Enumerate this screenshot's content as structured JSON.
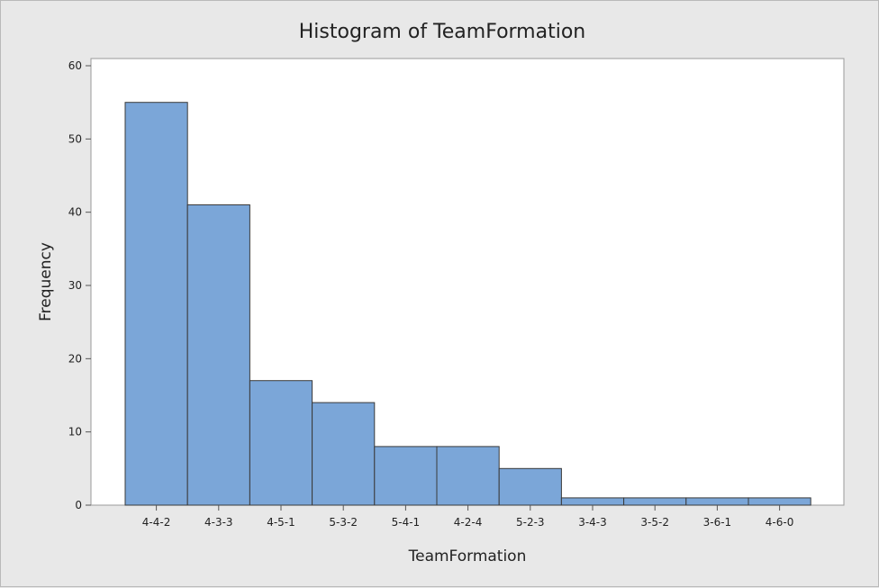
{
  "chart_data": {
    "type": "bar",
    "title": "Histogram of TeamFormation",
    "xlabel": "TeamFormation",
    "ylabel": "Frequency",
    "categories": [
      "4-4-2",
      "4-3-3",
      "4-5-1",
      "5-3-2",
      "5-4-1",
      "4-2-4",
      "5-2-3",
      "3-4-3",
      "3-5-2",
      "3-6-1",
      "4-6-0"
    ],
    "values": [
      55,
      41,
      17,
      14,
      8,
      8,
      5,
      1,
      1,
      1,
      1
    ],
    "ylim": [
      0,
      60
    ],
    "yticks": [
      0,
      10,
      20,
      30,
      40,
      50,
      60
    ],
    "grid": false,
    "legend": "none",
    "colors": {
      "bar_fill": "#7ba6d8",
      "bar_stroke": "#3a3a3a",
      "plot_background": "#ffffff",
      "outer_background": "#e8e8e8"
    }
  }
}
